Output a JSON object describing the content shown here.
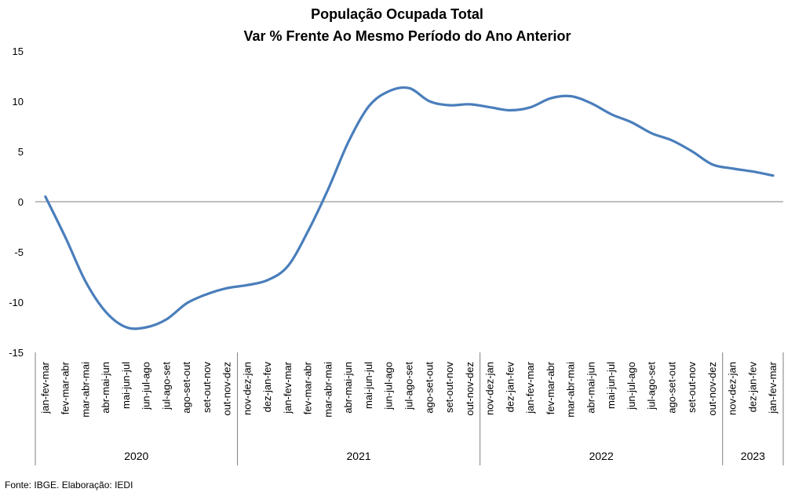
{
  "chart_data": {
    "type": "line",
    "title": "População Ocupada Total",
    "subtitle": "Var % Frente Ao Mesmo Período do Ano Anterior",
    "xlabel": "",
    "ylabel": "",
    "ylim": [
      -15,
      15
    ],
    "yticks": [
      15,
      10,
      5,
      0,
      -5,
      -10,
      -15
    ],
    "grid": false,
    "legend": "none",
    "line_color": "#4a7ebb",
    "categories": [
      "jan-fev-mar",
      "fev-mar-abr",
      "mar-abr-mai",
      "abr-mai-jun",
      "mai-jun-jul",
      "jun-jul-ago",
      "jul-ago-set",
      "ago-set-out",
      "set-out-nov",
      "out-nov-dez",
      "nov-dez-jan",
      "dez-jan-fev",
      "jan-fev-mar",
      "fev-mar-abr",
      "mar-abr-mai",
      "abr-mai-jun",
      "mai-jun-jul",
      "jun-jul-ago",
      "jul-ago-set",
      "ago-set-out",
      "set-out-nov",
      "out-nov-dez",
      "nov-dez-jan",
      "dez-jan-fev",
      "jan-fev-mar",
      "fev-mar-abr",
      "mar-abr-mai",
      "abr-mai-jun",
      "mai-jun-jul",
      "jun-jul-ago",
      "jul-ago-set",
      "ago-set-out",
      "set-out-nov",
      "out-nov-dez",
      "nov-dez-jan",
      "dez-jan-fev",
      "jan-fev-mar"
    ],
    "groups": [
      {
        "label": "2020",
        "count": 10
      },
      {
        "label": "2021",
        "count": 12
      },
      {
        "label": "2022",
        "count": 12
      },
      {
        "label": "2023",
        "count": 3
      }
    ],
    "series": [
      {
        "values": [
          0.5,
          -3.6,
          -8.0,
          -11.0,
          -12.5,
          -12.5,
          -11.7,
          -10.1,
          -9.2,
          -8.6,
          -8.3,
          -7.8,
          -6.4,
          -2.9,
          1.3,
          6.0,
          9.5,
          11.0,
          11.3,
          10.0,
          9.6,
          9.7,
          9.4,
          9.1,
          9.4,
          10.3,
          10.5,
          9.8,
          8.7,
          7.9,
          6.8,
          6.1,
          5.0,
          3.7,
          3.3,
          3.0,
          2.6
        ]
      }
    ]
  },
  "footer": {
    "source": "Fonte: IBGE. Elaboração: IEDI"
  }
}
